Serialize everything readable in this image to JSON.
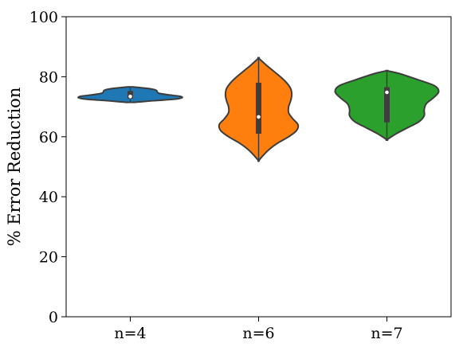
{
  "chart_data": {
    "type": "violin",
    "title": "",
    "xlabel": "",
    "ylabel": "% Error Reduction",
    "ylim": [
      0,
      100
    ],
    "yticks": [
      0,
      20,
      40,
      60,
      80,
      100
    ],
    "categories": [
      "n=4",
      "n=6",
      "n=7"
    ],
    "grid": false,
    "series": [
      {
        "category": "n=4",
        "color": "#1f77b4",
        "median": 73.4,
        "q1": 72.7,
        "q3": 75.2,
        "min": 71.5,
        "max": 76.6,
        "profile": [
          {
            "y": 71.5,
            "w": 0.1
          },
          {
            "y": 72.0,
            "w": 0.45
          },
          {
            "y": 72.5,
            "w": 0.85
          },
          {
            "y": 73.0,
            "w": 1.0
          },
          {
            "y": 73.5,
            "w": 0.95
          },
          {
            "y": 74.0,
            "w": 0.72
          },
          {
            "y": 74.5,
            "w": 0.55
          },
          {
            "y": 75.0,
            "w": 0.52
          },
          {
            "y": 75.5,
            "w": 0.5
          },
          {
            "y": 76.0,
            "w": 0.38
          },
          {
            "y": 76.6,
            "w": 0.06
          }
        ]
      },
      {
        "category": "n=6",
        "color": "#ff7f0e",
        "median": 66.6,
        "q1": 61.0,
        "q3": 78.0,
        "min": 52.0,
        "max": 86.2,
        "profile": [
          {
            "y": 52.0,
            "w": 0.0
          },
          {
            "y": 54.0,
            "w": 0.1
          },
          {
            "y": 56.0,
            "w": 0.22
          },
          {
            "y": 58.0,
            "w": 0.38
          },
          {
            "y": 60.0,
            "w": 0.58
          },
          {
            "y": 62.0,
            "w": 0.73
          },
          {
            "y": 64.0,
            "w": 0.76
          },
          {
            "y": 66.0,
            "w": 0.66
          },
          {
            "y": 68.0,
            "w": 0.58
          },
          {
            "y": 70.0,
            "w": 0.58
          },
          {
            "y": 72.0,
            "w": 0.62
          },
          {
            "y": 74.0,
            "w": 0.64
          },
          {
            "y": 76.0,
            "w": 0.62
          },
          {
            "y": 78.0,
            "w": 0.54
          },
          {
            "y": 80.0,
            "w": 0.42
          },
          {
            "y": 82.0,
            "w": 0.28
          },
          {
            "y": 84.0,
            "w": 0.14
          },
          {
            "y": 86.2,
            "w": 0.0
          }
        ]
      },
      {
        "category": "n=7",
        "color": "#2ca02c",
        "median": 74.8,
        "q1": 64.8,
        "q3": 76.5,
        "min": 59.0,
        "max": 82.0,
        "profile": [
          {
            "y": 59.0,
            "w": 0.0
          },
          {
            "y": 61.0,
            "w": 0.18
          },
          {
            "y": 63.0,
            "w": 0.4
          },
          {
            "y": 65.0,
            "w": 0.62
          },
          {
            "y": 67.0,
            "w": 0.72
          },
          {
            "y": 69.0,
            "w": 0.72
          },
          {
            "y": 71.0,
            "w": 0.76
          },
          {
            "y": 73.0,
            "w": 0.9
          },
          {
            "y": 75.0,
            "w": 1.0
          },
          {
            "y": 77.0,
            "w": 0.92
          },
          {
            "y": 79.0,
            "w": 0.6
          },
          {
            "y": 81.0,
            "w": 0.25
          },
          {
            "y": 82.0,
            "w": 0.0
          }
        ]
      }
    ]
  }
}
